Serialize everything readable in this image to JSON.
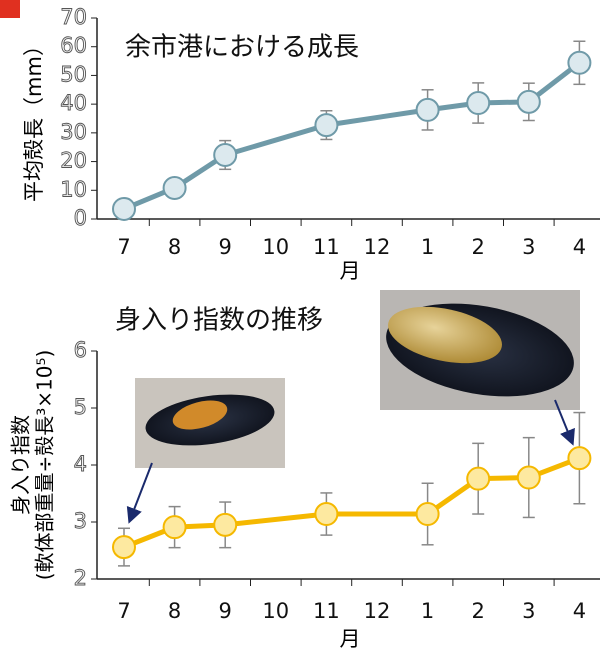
{
  "chart_data": [
    {
      "type": "line",
      "title": "余市港における成長",
      "y_label": "平均殻長（mm）",
      "x_label": "月",
      "categories": [
        "7",
        "8",
        "9",
        "10",
        "11",
        "12",
        "1",
        "2",
        "3",
        "4"
      ],
      "series": [
        {
          "color": "#6f9aa8",
          "marker_color": "#dce9ee",
          "values": [
            3.5,
            10.8,
            22.3,
            null,
            32.7,
            null,
            38,
            40.4,
            40.8,
            54.4
          ],
          "errors": [
            0,
            0,
            5,
            null,
            5,
            null,
            7,
            7,
            6.5,
            7.5
          ]
        }
      ],
      "ylim": [
        0,
        70
      ],
      "yticks": [
        0,
        10,
        20,
        30,
        40,
        50,
        60,
        70
      ]
    },
    {
      "type": "line",
      "title": "身入り指数の推移",
      "y_label": [
        "身入り指数",
        "(軟体部重量÷殻長³×10⁵)"
      ],
      "x_label": "月",
      "categories": [
        "7",
        "8",
        "9",
        "10",
        "11",
        "12",
        "1",
        "2",
        "3",
        "4"
      ],
      "series": [
        {
          "color": "#f5b800",
          "marker_color": "#fde9a0",
          "values": [
            2.56,
            2.91,
            2.95,
            null,
            3.14,
            null,
            3.14,
            3.76,
            3.78,
            4.12
          ],
          "errors": [
            0.33,
            0.36,
            0.4,
            null,
            0.37,
            null,
            0.54,
            0.62,
            0.7,
            0.8
          ]
        }
      ],
      "ylim": [
        2,
        6
      ],
      "yticks": [
        2,
        3,
        4,
        5,
        6
      ]
    }
  ]
}
